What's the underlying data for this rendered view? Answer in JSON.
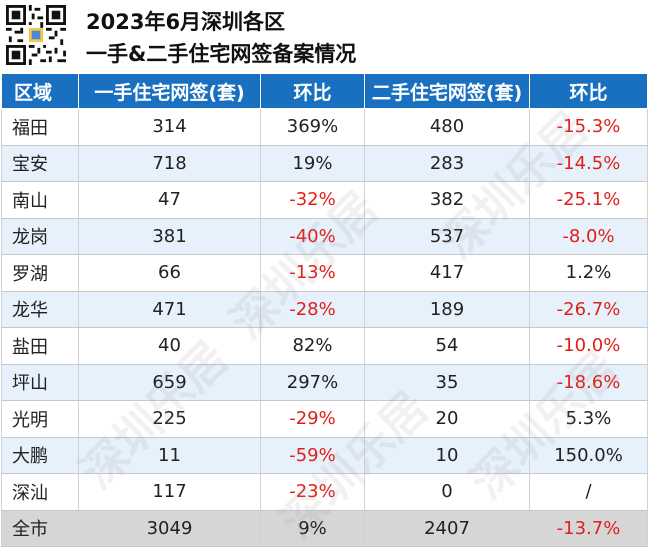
{
  "title": {
    "line1": "2023年6月深圳各区",
    "line2": "一手&二手住宅网签备案情况"
  },
  "watermark": "深圳乐居",
  "table": {
    "headers": [
      "区域",
      "一手住宅网签(套)",
      "环比",
      "二手住宅网签(套)",
      "环比"
    ],
    "rows": [
      {
        "district": "福田",
        "new_signed": "314",
        "new_mom": "369%",
        "second_signed": "480",
        "second_mom": "-15.3%"
      },
      {
        "district": "宝安",
        "new_signed": "718",
        "new_mom": "19%",
        "second_signed": "283",
        "second_mom": "-14.5%"
      },
      {
        "district": "南山",
        "new_signed": "47",
        "new_mom": "-32%",
        "second_signed": "382",
        "second_mom": "-25.1%"
      },
      {
        "district": "龙岗",
        "new_signed": "381",
        "new_mom": "-40%",
        "second_signed": "537",
        "second_mom": "-8.0%"
      },
      {
        "district": "罗湖",
        "new_signed": "66",
        "new_mom": "-13%",
        "second_signed": "417",
        "second_mom": "1.2%"
      },
      {
        "district": "龙华",
        "new_signed": "471",
        "new_mom": "-28%",
        "second_signed": "189",
        "second_mom": "-26.7%"
      },
      {
        "district": "盐田",
        "new_signed": "40",
        "new_mom": "82%",
        "second_signed": "54",
        "second_mom": "-10.0%"
      },
      {
        "district": "坪山",
        "new_signed": "659",
        "new_mom": "297%",
        "second_signed": "35",
        "second_mom": "-18.6%"
      },
      {
        "district": "光明",
        "new_signed": "225",
        "new_mom": "-29%",
        "second_signed": "20",
        "second_mom": "5.3%"
      },
      {
        "district": "大鹏",
        "new_signed": "11",
        "new_mom": "-59%",
        "second_signed": "10",
        "second_mom": "150.0%"
      },
      {
        "district": "深汕",
        "new_signed": "117",
        "new_mom": "-23%",
        "second_signed": "0",
        "second_mom": "/"
      }
    ],
    "total": {
      "district": "全市",
      "new_signed": "3049",
      "new_mom": "9%",
      "second_signed": "2407",
      "second_mom": "-13.7%"
    }
  },
  "colors": {
    "header_bg": "#1a70c0",
    "negative": "#e0211a",
    "alt_row": "#e6f1fb",
    "total_row": "#d6d6d6"
  }
}
